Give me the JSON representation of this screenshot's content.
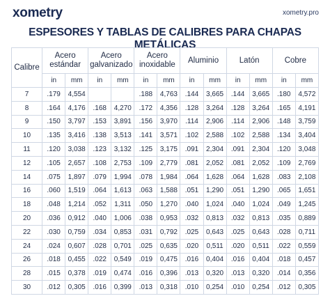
{
  "header": {
    "logo": "xometry",
    "site": "xometry.pro"
  },
  "title": "ESPESORES Y TABLAS DE CALIBRES PARA CHAPAS METÁLICAS",
  "table": {
    "first_header": "Calibre",
    "groups": [
      "Acero estándar",
      "Acero galvanizado",
      "Acero inoxidable",
      "Aluminio",
      "Latón",
      "Cobre"
    ],
    "units": [
      "in",
      "mm"
    ],
    "rows": [
      [
        "7",
        ".179",
        "4,554",
        null,
        null,
        ".188",
        "4,763",
        ".144",
        "3,665",
        ".144",
        "3,665",
        ".180",
        "4,572"
      ],
      [
        "8",
        ".164",
        "4,176",
        ".168",
        "4,270",
        ".172",
        "4,356",
        ".128",
        "3,264",
        ".128",
        "3,264",
        ".165",
        "4,191"
      ],
      [
        "9",
        ".150",
        "3,797",
        ".153",
        "3,891",
        ".156",
        "3,970",
        ".114",
        "2,906",
        ".114",
        "2,906",
        ".148",
        "3,759"
      ],
      [
        "10",
        ".135",
        "3,416",
        ".138",
        "3,513",
        ".141",
        "3,571",
        ".102",
        "2,588",
        ".102",
        "2,588",
        ".134",
        "3,404"
      ],
      [
        "11",
        ".120",
        "3,038",
        ".123",
        "3,132",
        ".125",
        "3,175",
        ".091",
        "2,304",
        ".091",
        "2,304",
        ".120",
        "3,048"
      ],
      [
        "12",
        ".105",
        "2,657",
        ".108",
        "2,753",
        ".109",
        "2,779",
        ".081",
        "2,052",
        ".081",
        "2,052",
        ".109",
        "2,769"
      ],
      [
        "14",
        ".075",
        "1,897",
        ".079",
        "1,994",
        ".078",
        "1,984",
        ".064",
        "1,628",
        ".064",
        "1,628",
        ".083",
        "2,108"
      ],
      [
        "16",
        ".060",
        "1,519",
        ".064",
        "1,613",
        ".063",
        "1,588",
        ".051",
        "1,290",
        ".051",
        "1,290",
        ".065",
        "1,651"
      ],
      [
        "18",
        ".048",
        "1,214",
        ".052",
        "1,311",
        ".050",
        "1,270",
        ".040",
        "1,024",
        ".040",
        "1,024",
        ".049",
        "1,245"
      ],
      [
        "20",
        ".036",
        "0,912",
        ".040",
        "1,006",
        ".038",
        "0,953",
        ".032",
        "0,813",
        ".032",
        "0,813",
        ".035",
        "0,889"
      ],
      [
        "22",
        ".030",
        "0,759",
        ".034",
        "0,853",
        ".031",
        "0,792",
        ".025",
        "0,643",
        ".025",
        "0,643",
        ".028",
        "0,711"
      ],
      [
        "24",
        ".024",
        "0,607",
        ".028",
        "0,701",
        ".025",
        "0,635",
        ".020",
        "0,511",
        ".020",
        "0,511",
        ".022",
        "0,559"
      ],
      [
        "26",
        ".018",
        "0,455",
        ".022",
        "0,549",
        ".019",
        "0,475",
        ".016",
        "0,404",
        ".016",
        "0,404",
        ".018",
        "0,457"
      ],
      [
        "28",
        ".015",
        "0,378",
        ".019",
        "0,474",
        ".016",
        "0,396",
        ".013",
        "0,320",
        ".013",
        "0,320",
        ".014",
        "0,356"
      ],
      [
        "30",
        ".012",
        "0,305",
        ".016",
        "0,399",
        ".013",
        "0,318",
        ".010",
        "0,254",
        ".010",
        "0,254",
        ".012",
        "0,305"
      ]
    ]
  }
}
